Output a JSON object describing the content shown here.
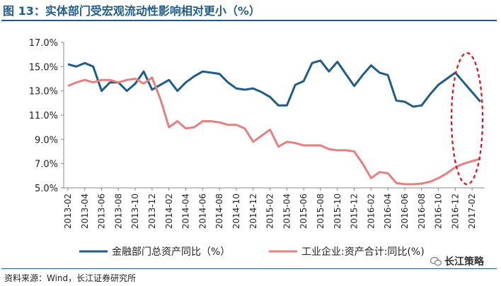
{
  "figure_title": "图 13：实体部门受宏观流动性影响相对更小（%）",
  "source_note": "资料来源：Wind，长江证券研究所",
  "watermark": "长江策略",
  "colors": {
    "series1": "#1f5c8a",
    "series2": "#e87f7f",
    "highlight": "#e0101a",
    "axis": "#888888"
  },
  "chart_data": {
    "type": "line",
    "title": "",
    "xlabel": "",
    "ylabel": "",
    "ylim": [
      5.0,
      17.0
    ],
    "yticks": [
      "5.0%",
      "7.0%",
      "9.0%",
      "11.0%",
      "13.0%",
      "15.0%",
      "17.0%"
    ],
    "ytick_values": [
      5,
      7,
      9,
      11,
      13,
      15,
      17
    ],
    "grid": false,
    "legend": "bottom",
    "x": [
      "2013-02",
      "2013-03",
      "2013-04",
      "2013-05",
      "2013-06",
      "2013-07",
      "2013-08",
      "2013-09",
      "2013-10",
      "2013-11",
      "2013-12",
      "2014-01",
      "2014-02",
      "2014-03",
      "2014-04",
      "2014-05",
      "2014-06",
      "2014-07",
      "2014-08",
      "2014-09",
      "2014-10",
      "2014-11",
      "2014-12",
      "2015-01",
      "2015-02",
      "2015-03",
      "2015-04",
      "2015-05",
      "2015-06",
      "2015-07",
      "2015-08",
      "2015-09",
      "2015-10",
      "2015-11",
      "2015-12",
      "2016-01",
      "2016-02",
      "2016-03",
      "2016-04",
      "2016-05",
      "2016-06",
      "2016-07",
      "2016-08",
      "2016-09",
      "2016-10",
      "2016-11",
      "2016-12",
      "2017-01",
      "2017-02",
      "2017-03"
    ],
    "xtick_labels": [
      "2013-02",
      "2013-04",
      "2013-06",
      "2013-08",
      "2013-10",
      "2013-12",
      "2014-02",
      "2014-04",
      "2014-06",
      "2014-08",
      "2014-10",
      "2014-12",
      "2015-02",
      "2015-04",
      "2015-06",
      "2015-08",
      "2015-10",
      "2015-12",
      "2016-02",
      "2016-04",
      "2016-06",
      "2016-08",
      "2016-10",
      "2016-12",
      "2017-02"
    ],
    "series": [
      {
        "name": "金融部门总资产同比（%）",
        "values": [
          15.2,
          15.0,
          15.3,
          15.0,
          13.0,
          13.7,
          13.7,
          13.0,
          13.6,
          14.6,
          13.1,
          13.5,
          13.9,
          13.0,
          13.7,
          14.2,
          14.6,
          14.5,
          14.4,
          13.7,
          13.2,
          13.1,
          13.2,
          12.9,
          12.5,
          11.8,
          11.8,
          13.5,
          13.8,
          15.3,
          15.5,
          14.6,
          15.4,
          14.4,
          13.4,
          14.3,
          15.1,
          14.5,
          14.3,
          12.2,
          12.1,
          11.7,
          11.8,
          12.7,
          13.5,
          14.0,
          14.5,
          13.7,
          12.9,
          12.1
        ]
      },
      {
        "name": "工业企业:资产合计:同比(%)",
        "values": [
          13.4,
          13.7,
          13.9,
          13.7,
          13.9,
          13.9,
          13.7,
          13.9,
          14.0,
          13.6,
          14.1,
          12.3,
          10.0,
          10.5,
          9.9,
          10.0,
          10.5,
          10.5,
          10.4,
          10.2,
          10.2,
          9.9,
          8.8,
          9.3,
          9.8,
          8.4,
          8.8,
          8.7,
          8.5,
          8.5,
          8.5,
          8.2,
          8.1,
          8.1,
          8.0,
          7.0,
          5.8,
          6.3,
          6.2,
          5.4,
          5.3,
          5.3,
          5.35,
          5.5,
          5.8,
          6.2,
          6.7,
          7.0,
          7.2,
          7.4
        ]
      }
    ]
  }
}
